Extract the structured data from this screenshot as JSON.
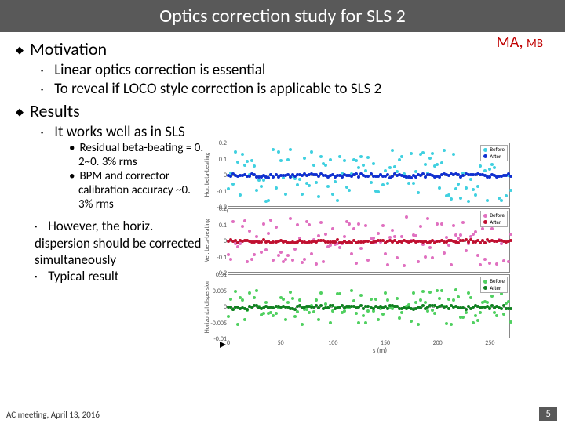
{
  "title": "Optics correction study for SLS 2",
  "ma": "MA, ",
  "mb": "MB",
  "sections": {
    "motivation": "Motivation",
    "results": "Results",
    "mot1": "Linear optics correction is essential",
    "mot2": "To reveal if LOCO style correction is applicable to SLS 2",
    "res1": "It works well as in SLS",
    "res1a": "Residual beta-beating = 0. 2~0. 3% rms",
    "res1b": "BPM and corrector calibration accuracy ~0. 3% rms",
    "res2": "However, the horiz. dispersion should be corrected simultaneously",
    "res3": "Typical result"
  },
  "footer": "AC meeting, April 13, 2016",
  "pagenum": "5",
  "xaxis_label": "s (m)",
  "charts": [
    {
      "ylabel": "Hor. beta-beating",
      "height": 82,
      "ylim": [
        -0.2,
        0.2
      ],
      "yticks": [
        -0.2,
        -0.1,
        0.0,
        0.1,
        0.2
      ],
      "xlim": [
        0,
        270
      ],
      "xticks": [
        0,
        50,
        100,
        150,
        200,
        250
      ],
      "colors": {
        "before": "#40d0e0",
        "after": "#1030d0"
      },
      "legend": [
        "Before",
        "After"
      ],
      "before": {
        "n": 120,
        "amp": 0.18,
        "jitter": 0.9
      },
      "after": {
        "n": 120,
        "amp": 0.02,
        "jitter": 0.6
      }
    },
    {
      "ylabel": "Ver. beta-beating",
      "height": 82,
      "ylim": [
        -0.2,
        0.2
      ],
      "yticks": [
        -0.2,
        -0.1,
        0.0,
        0.1,
        0.2
      ],
      "xlim": [
        0,
        270
      ],
      "xticks": [],
      "colors": {
        "before": "#e070c0",
        "after": "#c01030"
      },
      "legend": [
        "Before",
        "After"
      ],
      "before": {
        "n": 120,
        "amp": 0.17,
        "jitter": 0.9
      },
      "after": {
        "n": 120,
        "amp": 0.015,
        "jitter": 0.6
      }
    },
    {
      "ylabel": "Horizontal dispersion",
      "height": 82,
      "ylim": [
        -0.01,
        0.01
      ],
      "yticks": [
        -0.01,
        -0.005,
        0.0,
        0.005,
        0.01
      ],
      "xlim": [
        0,
        270
      ],
      "xticks": [
        0,
        50,
        100,
        150,
        200,
        250
      ],
      "colors": {
        "before": "#50d060",
        "after": "#108020"
      },
      "legend": [
        "Before",
        "After"
      ],
      "before": {
        "n": 120,
        "amp": 0.006,
        "jitter": 0.9
      },
      "after": {
        "n": 120,
        "amp": 0.001,
        "jitter": 0.6
      }
    }
  ]
}
